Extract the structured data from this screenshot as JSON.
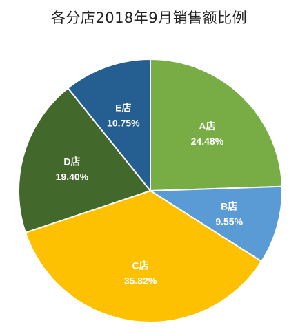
{
  "chart_data": {
    "type": "pie",
    "title": "各分店2018年9月销售额比例",
    "categories": [
      "A店",
      "B店",
      "C店",
      "D店",
      "E店"
    ],
    "values": [
      24.48,
      9.55,
      35.82,
      19.4,
      10.75
    ],
    "value_labels": [
      "24.48%",
      "9.55%",
      "35.82%",
      "19.40%",
      "10.75%"
    ],
    "colors": [
      "#78AD45",
      "#5B9BD5",
      "#FDC102",
      "#43682B",
      "#255E91"
    ],
    "start_angle_deg": 0,
    "direction": "clockwise",
    "legend": "none",
    "grid": false
  }
}
